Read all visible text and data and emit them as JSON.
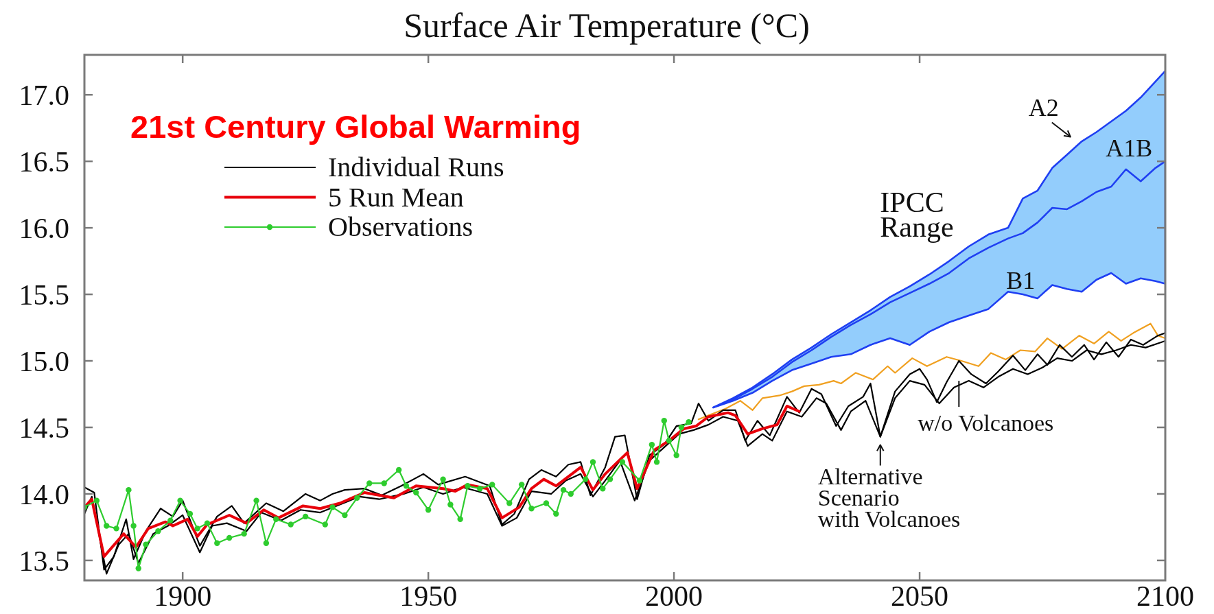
{
  "chart_data": {
    "type": "line",
    "title": "Surface Air Temperature (°C)",
    "subtitle": "21st Century Global Warming",
    "xlim": [
      1880,
      2100
    ],
    "ylim": [
      13.35,
      17.3
    ],
    "xticks": [
      1900,
      1950,
      2000,
      2050,
      2100
    ],
    "yticks": [
      13.5,
      {
        "value": 14,
        "label": "14.0"
      },
      14.5,
      {
        "value": 15,
        "label": "15.0"
      },
      15.5,
      {
        "value": 16,
        "label": "16.0"
      },
      16.5,
      {
        "value": 17,
        "label": "17.0"
      }
    ],
    "legend": "top left",
    "series": [
      {
        "color": "#1f3ff2",
        "x": [
          2008,
          2012,
          2016,
          2020,
          2024,
          2028,
          2032,
          2036,
          2040,
          2044,
          2048,
          2052,
          2056,
          2060,
          2064,
          2068,
          2071,
          2074,
          2077,
          2080,
          2083,
          2086,
          2089,
          2092,
          2095,
          2098,
          2100
        ],
        "values": [
          14.65,
          14.71,
          14.79,
          14.88,
          14.99,
          15.08,
          15.18,
          15.27,
          15.35,
          15.44,
          15.51,
          15.58,
          15.66,
          15.77,
          15.85,
          15.92,
          15.96,
          16.04,
          16.15,
          16.14,
          16.2,
          16.27,
          16.31,
          16.44,
          16.35,
          16.45,
          16.5
        ],
        "lower": [
          14.65,
          14.7,
          14.76,
          14.85,
          14.93,
          14.98,
          15.03,
          15.05,
          15.12,
          15.17,
          15.12,
          15.22,
          15.29,
          15.34,
          15.39,
          15.52,
          15.5,
          15.47,
          15.57,
          15.54,
          15.52,
          15.61,
          15.66,
          15.58,
          15.62,
          15.6,
          15.58
        ],
        "upper": [
          14.65,
          14.72,
          14.8,
          14.9,
          15.01,
          15.1,
          15.2,
          15.29,
          15.38,
          15.48,
          15.56,
          15.65,
          15.75,
          15.86,
          15.95,
          16.0,
          16.22,
          16.28,
          16.45,
          16.55,
          16.65,
          16.72,
          16.8,
          16.88,
          16.98,
          17.1,
          17.18
        ]
      },
      {
        "color": "#f0a020",
        "x": [
          2005,
          2007,
          2010.5,
          2013.5,
          2016,
          2018,
          2021.5,
          2024,
          2026.5,
          2029.5,
          2032.5,
          2034,
          2037,
          2040.5,
          2043.5,
          2045,
          2048.5,
          2051.5,
          2055.5,
          2058.5,
          2062,
          2064.5,
          2067.5,
          2070.5,
          2073.5,
          2076,
          2079,
          2082.5,
          2085.5,
          2088.5,
          2091,
          2093.5,
          2097,
          2098.5,
          2100
        ],
        "values": [
          14.56,
          14.59,
          14.64,
          14.7,
          14.63,
          14.72,
          14.74,
          14.77,
          14.81,
          14.82,
          14.85,
          14.83,
          14.91,
          14.86,
          14.96,
          14.91,
          15.02,
          14.96,
          15.03,
          15.0,
          14.96,
          15.06,
          15.01,
          15.08,
          15.07,
          15.17,
          15.09,
          15.19,
          15.13,
          15.22,
          15.15,
          15.21,
          15.28,
          15.19,
          15.17
        ]
      },
      {
        "color": "#000000",
        "x": [
          1880,
          1881.5,
          1884.5,
          1887,
          1889,
          1891,
          1894,
          1897,
          1900,
          1903.5,
          1906,
          1909,
          1913,
          1916,
          1920,
          1924,
          1928,
          1932,
          1936,
          1940,
          1945,
          1949,
          1953,
          1957,
          1962,
          1965,
          1968,
          1971,
          1975,
          1978,
          1981,
          1983.5,
          1986,
          1989,
          1992,
          1995,
          1998,
          2001,
          2004,
          2007,
          2010,
          2013,
          2015,
          2018,
          2020,
          2023,
          2026,
          2029,
          2031,
          2034,
          2036,
          2039,
          2042,
          2045,
          2048,
          2051,
          2054,
          2057,
          2060,
          2063,
          2066,
          2069,
          2072,
          2075,
          2078,
          2081,
          2084,
          2087,
          2090,
          2093,
          2096,
          2100
        ],
        "values": [
          13.85,
          13.98,
          13.4,
          13.62,
          13.7,
          13.48,
          13.7,
          13.76,
          13.84,
          13.56,
          13.76,
          13.78,
          13.72,
          13.86,
          13.8,
          13.88,
          13.86,
          13.92,
          13.98,
          13.96,
          14.0,
          14.05,
          14.0,
          14.05,
          14.0,
          13.76,
          13.82,
          14.02,
          14.0,
          14.1,
          14.15,
          13.98,
          14.1,
          14.25,
          13.95,
          14.25,
          14.35,
          14.45,
          14.48,
          14.52,
          14.58,
          14.55,
          14.36,
          14.45,
          14.4,
          14.62,
          14.58,
          14.72,
          14.68,
          14.48,
          14.62,
          14.7,
          14.43,
          14.72,
          14.85,
          14.82,
          14.68,
          14.8,
          14.85,
          14.8,
          14.88,
          14.94,
          14.9,
          14.95,
          15.02,
          15.0,
          15.08,
          15.05,
          15.08,
          15.12,
          15.1,
          15.15
        ]
      },
      {
        "name": "Individual Runs",
        "color": "#000000",
        "x": [
          1880,
          1882,
          1884,
          1886,
          1888.5,
          1890,
          1892.5,
          1895.5,
          1898,
          1900,
          1903.5,
          1907,
          1910,
          1912.5,
          1917,
          1920.5,
          1925,
          1928,
          1930.5,
          1933,
          1937,
          1940.5,
          1944.5,
          1949,
          1952,
          1957.5,
          1962.5,
          1965,
          1967.5,
          1970.5,
          1973,
          1976,
          1978.5,
          1981,
          1983,
          1986,
          1988,
          1990,
          1992.5,
          1995,
          1998,
          2000.5,
          2003.5,
          2005,
          2007,
          2010,
          2012.5,
          2014.5,
          2017,
          2019.5,
          2023,
          2025.5,
          2028,
          2030,
          2033,
          2035.5,
          2038.5,
          2040,
          2042,
          2045,
          2048,
          2050,
          2051.5,
          2053.5,
          2055.5,
          2058,
          2060.5,
          2063.5,
          2066,
          2069,
          2071.5,
          2074,
          2076,
          2078.5,
          2081,
          2083.5,
          2085.5,
          2088,
          2090.5,
          2093,
          2095.5,
          2098.5,
          2100
        ],
        "values": [
          14.05,
          14.01,
          13.43,
          13.53,
          13.81,
          13.51,
          13.72,
          13.89,
          13.83,
          13.95,
          13.61,
          13.83,
          13.91,
          13.78,
          13.93,
          13.87,
          14.0,
          13.95,
          14.0,
          14.03,
          14.04,
          13.99,
          14.06,
          14.15,
          14.07,
          14.13,
          14.06,
          13.77,
          13.85,
          14.11,
          14.18,
          14.13,
          14.22,
          14.24,
          13.99,
          14.2,
          14.43,
          14.44,
          13.96,
          14.29,
          14.37,
          14.51,
          14.53,
          14.68,
          14.55,
          14.63,
          14.63,
          14.4,
          14.55,
          14.44,
          14.73,
          14.61,
          14.79,
          14.75,
          14.51,
          14.66,
          14.73,
          14.83,
          14.43,
          14.77,
          14.9,
          14.94,
          14.86,
          14.69,
          14.84,
          15.0,
          14.9,
          14.83,
          14.92,
          15.04,
          14.93,
          15.05,
          14.97,
          15.12,
          15.03,
          15.12,
          15.01,
          15.14,
          15.03,
          15.16,
          15.12,
          15.19,
          15.21
        ]
      },
      {
        "name": "5 Run Mean",
        "color": "#e8000b",
        "x": [
          1880,
          1881.5,
          1884,
          1888,
          1890.5,
          1893,
          1896.5,
          1898,
          1901,
          1903,
          1905,
          1909.5,
          1913,
          1916.5,
          1919.5,
          1924.5,
          1928,
          1932,
          1937,
          1943,
          1947.5,
          1953,
          1955.5,
          1958,
          1962,
          1965,
          1968.5,
          1971,
          1973.5,
          1976,
          1981,
          1983.5,
          1986,
          1990.5,
          1992.5,
          1996,
          1999,
          2002,
          2004.5,
          2007,
          2011,
          2012.5,
          2015,
          2018,
          2021,
          2023,
          2025.5
        ],
        "values": [
          13.9,
          13.96,
          13.53,
          13.7,
          13.6,
          13.74,
          13.79,
          13.76,
          13.81,
          13.68,
          13.77,
          13.84,
          13.78,
          13.88,
          13.82,
          13.91,
          13.89,
          13.93,
          14.01,
          13.97,
          14.06,
          14.04,
          14.02,
          14.07,
          14.04,
          13.82,
          13.9,
          14.04,
          14.11,
          14.06,
          14.2,
          14.03,
          14.15,
          14.31,
          14.04,
          14.33,
          14.4,
          14.49,
          14.51,
          14.58,
          14.61,
          14.59,
          14.45,
          14.49,
          14.52,
          14.66,
          14.62
        ]
      },
      {
        "name": "Observations",
        "color": "#2ecc2e",
        "marker": "circle",
        "x": [
          1880,
          1882.5,
          1884.5,
          1886.5,
          1889,
          1890,
          1891,
          1892.5,
          1895,
          1897.5,
          1899.5,
          1901.5,
          1903,
          1905,
          1907,
          1909.5,
          1912.5,
          1915,
          1917,
          1919,
          1922,
          1925,
          1929,
          1930.5,
          1933,
          1935.5,
          1938,
          1941,
          1944,
          1945.5,
          1947.5,
          1950,
          1953,
          1954.5,
          1956.5,
          1958,
          1960.5,
          1963,
          1966.5,
          1969,
          1971,
          1974,
          1976,
          1977.5,
          1979,
          1982,
          1983.5,
          1985.5,
          1987,
          1989.5,
          1993,
          1995.5,
          1996.5,
          1998,
          1999,
          2000.5,
          2001.5,
          2003
        ],
        "values": [
          13.9,
          13.95,
          13.76,
          13.74,
          14.03,
          13.76,
          13.44,
          13.62,
          13.72,
          13.8,
          13.95,
          13.85,
          13.74,
          13.78,
          13.63,
          13.67,
          13.7,
          13.95,
          13.63,
          13.81,
          13.77,
          13.83,
          13.77,
          13.9,
          13.84,
          13.97,
          14.08,
          14.08,
          14.18,
          14.06,
          14.01,
          13.88,
          14.11,
          13.92,
          13.81,
          14.06,
          14.04,
          14.07,
          13.93,
          14.07,
          13.89,
          13.93,
          13.85,
          14.03,
          14.0,
          14.11,
          14.24,
          14.04,
          14.11,
          14.24,
          14.1,
          14.37,
          14.24,
          14.55,
          14.4,
          14.29,
          14.5,
          14.54
        ]
      }
    ],
    "annotations": [
      {
        "text": "A2",
        "x": 2080,
        "y": 16.55
      },
      {
        "text": "A1B",
        "x": 2095,
        "y": 16.35
      },
      {
        "text": "B1",
        "x": 2070,
        "y": 15.51
      },
      {
        "text": "IPCC Range",
        "x": 2052,
        "y": 15.65
      },
      {
        "text": "Alternative Scenario with Volcanoes",
        "x": 2042,
        "y": 14.43
      },
      {
        "text": "w/o Volcanoes",
        "x": 2058,
        "y": 14.85
      }
    ]
  }
}
